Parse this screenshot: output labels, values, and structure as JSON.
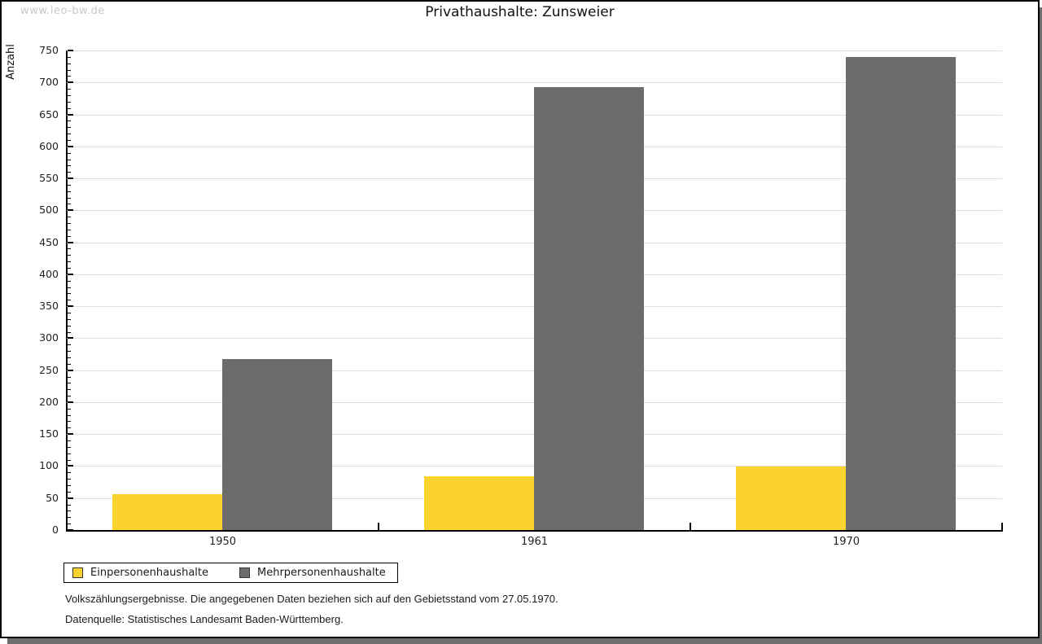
{
  "watermark": "www.leo-bw.de",
  "chart_data": {
    "type": "bar",
    "title": "Privathaushalte: Zunsweier",
    "categories": [
      "1950",
      "1961",
      "1970"
    ],
    "series": [
      {
        "name": "Einpersonenhaushalte",
        "color": "#FBD32E",
        "values": [
          56,
          84,
          99
        ]
      },
      {
        "name": "Mehrpersonenhaushalte",
        "color": "#6C6C6C",
        "values": [
          267,
          693,
          740
        ]
      }
    ],
    "xlabel": "",
    "ylabel": "Anzahl",
    "ylim": [
      0,
      750
    ],
    "ytick_major_step": 50,
    "ytick_minor_step": 10,
    "grid": true,
    "legend_position": "bottom-left"
  },
  "legend": {
    "items": [
      "Einpersonenhaushalte",
      "Mehrpersonenhaushalte"
    ]
  },
  "footer": {
    "line1": "Volkszählungsergebnisse. Die angegebenen Daten beziehen sich auf den Gebietsstand vom 27.05.1970.",
    "line2": "Datenquelle: Statistisches Landesamt Baden-Württemberg."
  },
  "colors": {
    "grid": "#DEDEDE",
    "axis": "#000000",
    "frame_border": "#000000",
    "frame_shadow": "#6E6E6E",
    "watermark": "#C9C9C9",
    "bar_yellow": "#FBD32E",
    "bar_gray": "#6C6C6C"
  }
}
